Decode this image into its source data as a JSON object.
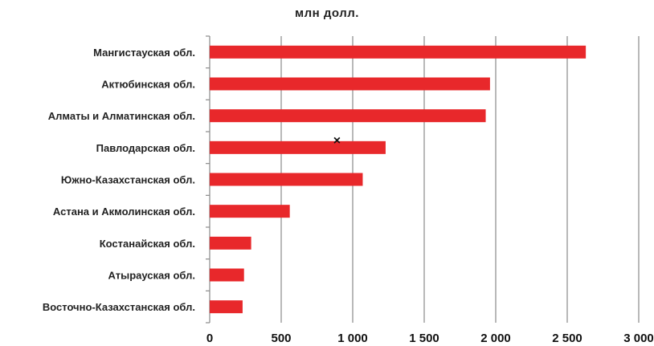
{
  "chart_data": {
    "type": "bar",
    "orientation": "horizontal",
    "title": "млн долл.",
    "xlabel": "",
    "ylabel": "",
    "categories": [
      "Мангистауская обл.",
      "Актюбинская обл.",
      "Алматы и Алматинская обл.",
      "Павлодарская обл.",
      "Южно-Казахстанская обл.",
      "Астана и Акмолинская обл.",
      "Костанайская обл.",
      "Атырауская обл.",
      "Восточно-Казахстанская обл."
    ],
    "values": [
      2630,
      1960,
      1930,
      1230,
      1070,
      560,
      290,
      240,
      230
    ],
    "xlim": [
      0,
      3000
    ],
    "xticks": [
      0,
      500,
      1000,
      1500,
      2000,
      2500,
      3000
    ],
    "xtick_labels": [
      "0",
      "500",
      "1 000",
      "1 500",
      "2 000",
      "2 500",
      "3 000"
    ],
    "grid": "vertical",
    "legend": "none",
    "bar_color": "#e8282b",
    "marker": {
      "symbol": "×",
      "x": 890,
      "category": "Павлодарская обл."
    }
  }
}
